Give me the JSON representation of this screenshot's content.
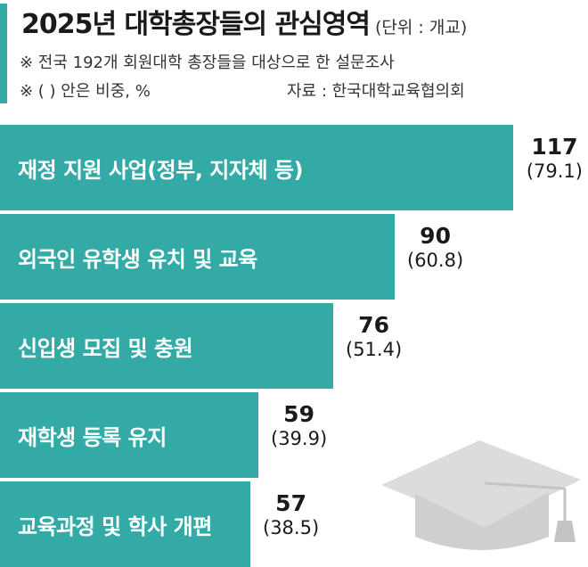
{
  "header": {
    "title": "2025년 대학총장들의 관심영역",
    "unit": "(단위 : 개교)",
    "note1": "※ 전국 192개 회원대학 총장들을 대상으로 한 설문조사",
    "note2": "※ ( ) 안은 비중, %",
    "source": "자료 : 한국대학교육협의회"
  },
  "colors": {
    "bar": "#33aaa6",
    "text": "#1a1a1a",
    "cap": "#dcdcdc"
  },
  "chart_data": {
    "type": "bar",
    "orientation": "horizontal",
    "categories": [
      "재정 지원 사업(정부, 지자체 등)",
      "외국인 유학생 유치 및 교육",
      "신입생 모집 및 충원",
      "재학생 등록 유지",
      "교육과정 및 학사 개편"
    ],
    "values": [
      117,
      90,
      76,
      59,
      57
    ],
    "percent_labels": [
      "(79.1)",
      "(60.8)",
      "(51.4)",
      "(39.9)",
      "(38.5)"
    ]
  },
  "decoration": {
    "icon": "graduation-cap-icon"
  }
}
